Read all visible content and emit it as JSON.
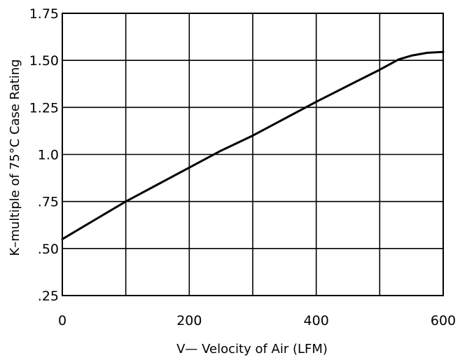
{
  "chart_data": {
    "type": "line",
    "title": "",
    "xlabel": "V— Velocity of Air (LFM)",
    "ylabel": "K–multiple of 75°C Case Rating",
    "xlim": [
      0,
      600
    ],
    "ylim": [
      0.25,
      1.75
    ],
    "x_ticks": [
      {
        "value": 0,
        "label": "0"
      },
      {
        "value": 200,
        "label": "200"
      },
      {
        "value": 400,
        "label": "400"
      },
      {
        "value": 600,
        "label": "600"
      }
    ],
    "y_ticks": [
      {
        "value": 0.25,
        "label": ".25"
      },
      {
        "value": 0.5,
        "label": ".50"
      },
      {
        "value": 0.75,
        "label": ".75"
      },
      {
        "value": 1.0,
        "label": "1.0"
      },
      {
        "value": 1.25,
        "label": "1.25"
      },
      {
        "value": 1.5,
        "label": "1.50"
      },
      {
        "value": 1.75,
        "label": "1.75"
      }
    ],
    "x_grid": [
      0,
      100,
      200,
      300,
      400,
      500,
      600
    ],
    "y_grid": [
      0.25,
      0.5,
      0.75,
      1.0,
      1.25,
      1.5,
      1.75
    ],
    "grid": true,
    "legend": "none",
    "series": [
      {
        "values": [
          {
            "x": 0,
            "y": 0.55
          },
          {
            "x": 50,
            "y": 0.65
          },
          {
            "x": 100,
            "y": 0.75
          },
          {
            "x": 150,
            "y": 0.84
          },
          {
            "x": 200,
            "y": 0.93
          },
          {
            "x": 250,
            "y": 1.02
          },
          {
            "x": 300,
            "y": 1.1
          },
          {
            "x": 350,
            "y": 1.19
          },
          {
            "x": 400,
            "y": 1.28
          },
          {
            "x": 450,
            "y": 1.365
          },
          {
            "x": 500,
            "y": 1.45
          },
          {
            "x": 530,
            "y": 1.505
          },
          {
            "x": 550,
            "y": 1.525
          },
          {
            "x": 575,
            "y": 1.54
          },
          {
            "x": 600,
            "y": 1.545
          }
        ]
      }
    ]
  }
}
